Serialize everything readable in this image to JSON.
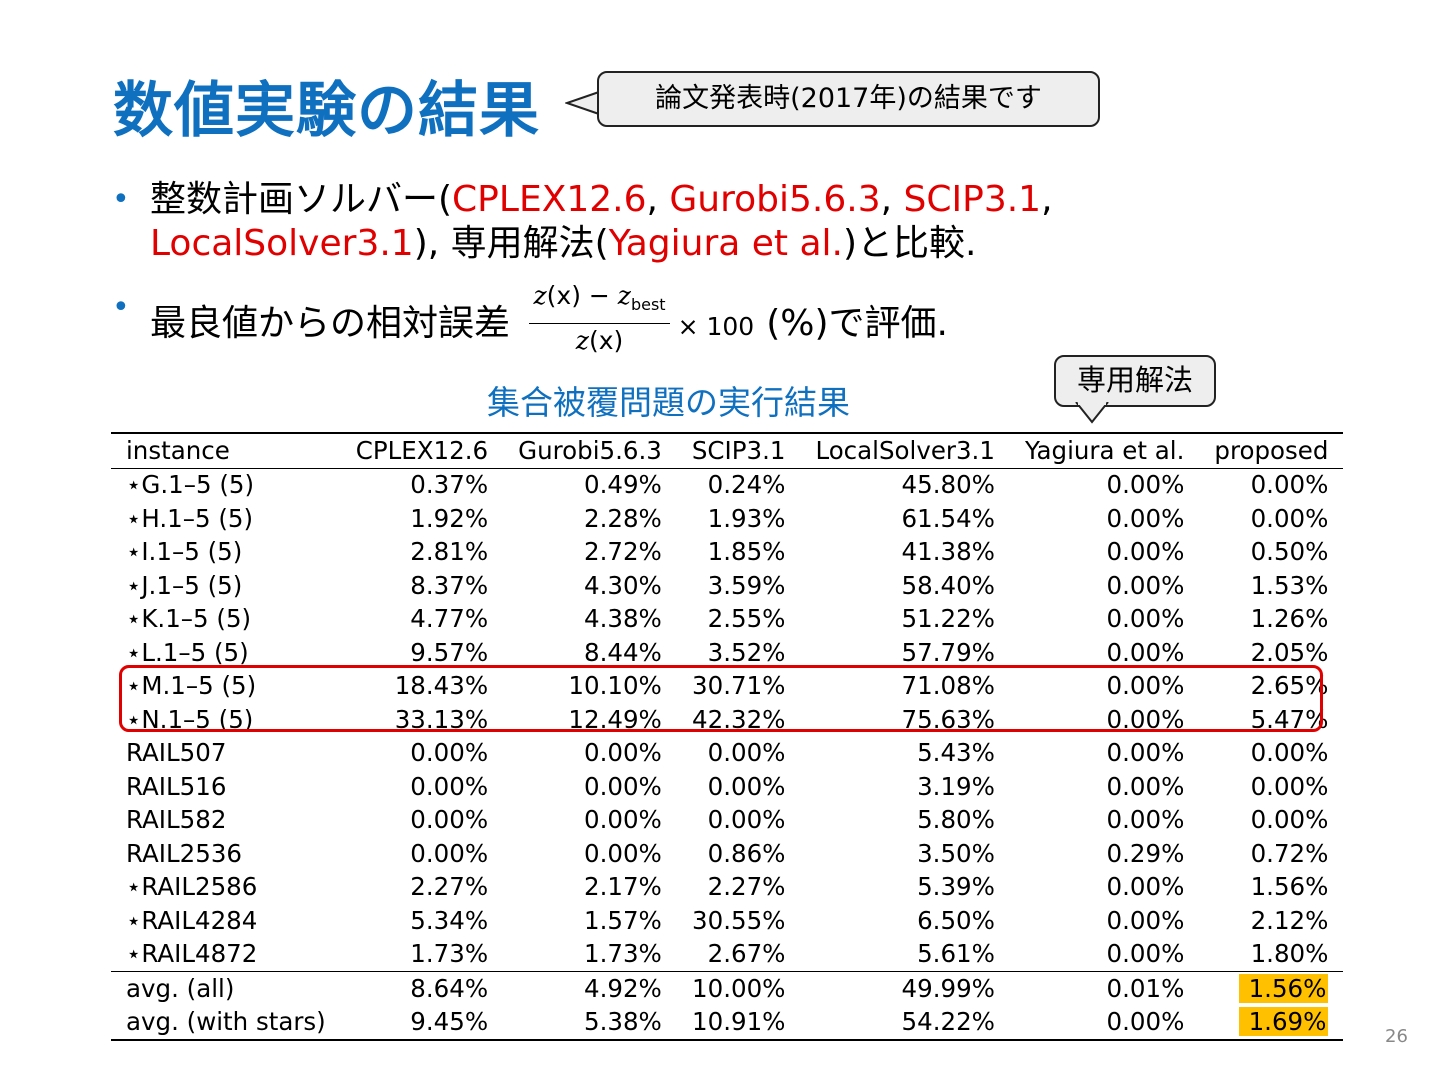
{
  "title": "数値実験の結果",
  "callout_top": "論文発表時(2017年)の結果です",
  "bullets": {
    "b1": {
      "pre": "整数計画ソルバー(",
      "s1": "CPLEX12.6",
      "sep1": ", ",
      "s2": "Gurobi5.6.3",
      "sep2": ", ",
      "s3": "SCIP3.1",
      "sep3": ", ",
      "s4": "LocalSolver3.1",
      "mid": "), 専用解法(",
      "s5": "Yagiura et al.",
      "post": ")と比較."
    },
    "b2": {
      "pre": "最良値からの相対誤差",
      "num_a": "z",
      "num_b": "(x) − ",
      "num_c": "z",
      "num_sub": "best",
      "den_a": "z",
      "den_b": "(x)",
      "times": "× 100",
      "post": "(%)で評価."
    }
  },
  "table_caption": "集合被覆問題の実行結果",
  "callout_algo": "専用解法",
  "table": {
    "headers": [
      "instance",
      "CPLEX12.6",
      "Gurobi5.6.3",
      "SCIP3.1",
      "LocalSolver3.1",
      "Yagiura et al.",
      "proposed"
    ],
    "rows": [
      [
        "⋆G.1–5 (5)",
        "0.37%",
        "0.49%",
        "0.24%",
        "45.80%",
        "0.00%",
        "0.00%"
      ],
      [
        "⋆H.1–5 (5)",
        "1.92%",
        "2.28%",
        "1.93%",
        "61.54%",
        "0.00%",
        "0.00%"
      ],
      [
        "⋆I.1–5 (5)",
        "2.81%",
        "2.72%",
        "1.85%",
        "41.38%",
        "0.00%",
        "0.50%"
      ],
      [
        "⋆J.1–5 (5)",
        "8.37%",
        "4.30%",
        "3.59%",
        "58.40%",
        "0.00%",
        "1.53%"
      ],
      [
        "⋆K.1–5 (5)",
        "4.77%",
        "4.38%",
        "2.55%",
        "51.22%",
        "0.00%",
        "1.26%"
      ],
      [
        "⋆L.1–5 (5)",
        "9.57%",
        "8.44%",
        "3.52%",
        "57.79%",
        "0.00%",
        "2.05%"
      ],
      [
        "⋆M.1–5 (5)",
        "18.43%",
        "10.10%",
        "30.71%",
        "71.08%",
        "0.00%",
        "2.65%"
      ],
      [
        "⋆N.1–5 (5)",
        "33.13%",
        "12.49%",
        "42.32%",
        "75.63%",
        "0.00%",
        "5.47%"
      ],
      [
        "RAIL507",
        "0.00%",
        "0.00%",
        "0.00%",
        "5.43%",
        "0.00%",
        "0.00%"
      ],
      [
        "RAIL516",
        "0.00%",
        "0.00%",
        "0.00%",
        "3.19%",
        "0.00%",
        "0.00%"
      ],
      [
        "RAIL582",
        "0.00%",
        "0.00%",
        "0.00%",
        "5.80%",
        "0.00%",
        "0.00%"
      ],
      [
        "RAIL2536",
        "0.00%",
        "0.00%",
        "0.86%",
        "3.50%",
        "0.29%",
        "0.72%"
      ],
      [
        "⋆RAIL2586",
        "2.27%",
        "2.17%",
        "2.27%",
        "5.39%",
        "0.00%",
        "1.56%"
      ],
      [
        "⋆RAIL4284",
        "5.34%",
        "1.57%",
        "30.55%",
        "6.50%",
        "0.00%",
        "2.12%"
      ],
      [
        "⋆RAIL4872",
        "1.73%",
        "1.73%",
        "2.67%",
        "5.61%",
        "0.00%",
        "1.80%"
      ]
    ],
    "avg_rows": [
      [
        "avg. (all)",
        "8.64%",
        "4.92%",
        "10.00%",
        "49.99%",
        "0.01%",
        "1.56%"
      ],
      [
        "avg. (with stars)",
        "9.45%",
        "5.38%",
        "10.91%",
        "54.22%",
        "0.00%",
        "1.69%"
      ]
    ]
  },
  "colors": {
    "title_blue": "#1070c0",
    "solver_red": "#e00000",
    "highlight_box": "#e00000",
    "avg_highlight": "#ffc000"
  },
  "page_number": "26"
}
